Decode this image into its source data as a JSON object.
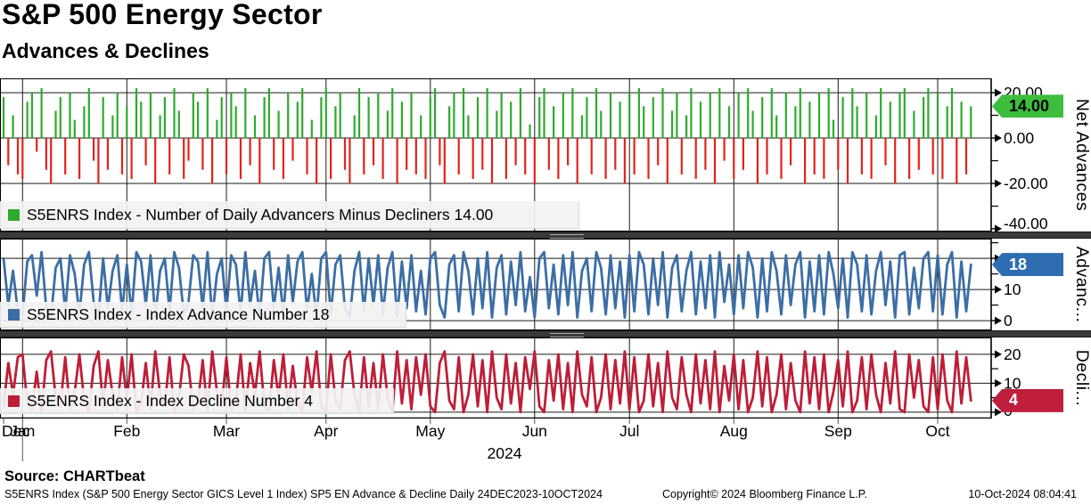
{
  "header": {
    "title": "S&P 500 Energy Sector",
    "subtitle": "Advances & Declines"
  },
  "footer": {
    "source": "Source: CHARTbeat",
    "description": "S5ENRS Index (S&P 500 Energy Sector GICS Level 1 Index) SP5 EN Advance & Decline  Daily 24DEC2023-10OCT2024",
    "copyright": "Copyright© 2024 Bloomberg Finance L.P.",
    "timestamp": "10-Oct-2024 08:04:41"
  },
  "x_axis": {
    "months": [
      "Dec",
      "Jan",
      "Feb",
      "Mar",
      "Apr",
      "May",
      "Jun",
      "Jul",
      "Aug",
      "Sep",
      "Oct"
    ],
    "month_start_index": [
      0,
      4,
      26,
      47,
      68,
      90,
      112,
      132,
      154,
      176,
      197
    ],
    "year": "2024"
  },
  "chart_data": [
    {
      "type": "bar",
      "axis_title": "Net Advances",
      "legend": "S5ENRS Index - Number of Daily Advancers Minus Decliners 14.00",
      "legend_color": "#2DAB2D",
      "pos_color": "#2DAB2D",
      "neg_color": "#E2231C",
      "badge": "14.00",
      "last_value": 14,
      "badge_color": "#3CBE3C",
      "badge_text_color": "#000000",
      "yticks": [
        20,
        0,
        -20,
        -40
      ],
      "ytick_labels": [
        "20.00",
        "0.00",
        "-20.00",
        "-40.00"
      ],
      "yticks_minor": [
        10,
        -10,
        -30
      ],
      "ylim": [
        -41.2,
        26.3
      ],
      "values": [
        18,
        -12,
        10,
        -16,
        -18,
        16,
        20,
        -6,
        22,
        -14,
        -20,
        12,
        18,
        -16,
        20,
        8,
        -18,
        14,
        22,
        -10,
        -20,
        18,
        -14,
        10,
        20,
        -16,
        14,
        -18,
        22,
        16,
        -12,
        20,
        -20,
        10,
        18,
        -16,
        22,
        12,
        -18,
        -10,
        20,
        16,
        -14,
        22,
        -20,
        8,
        18,
        -16,
        20,
        14,
        -18,
        22,
        -12,
        10,
        -20,
        18,
        22,
        -14,
        12,
        -18,
        20,
        -10,
        16,
        22,
        -16,
        8,
        -20,
        18,
        22,
        -18,
        14,
        20,
        -14,
        -20,
        10,
        22,
        -16,
        18,
        -12,
        20,
        -18,
        12,
        22,
        -20,
        16,
        -14,
        20,
        -16,
        10,
        -18,
        18,
        22,
        -12,
        -20,
        14,
        20,
        -16,
        22,
        10,
        -18,
        18,
        -14,
        22,
        -20,
        12,
        20,
        -18,
        16,
        -12,
        22,
        -16,
        6,
        -20,
        18,
        22,
        -14,
        14,
        -18,
        20,
        -12,
        22,
        -20,
        10,
        18,
        -16,
        22,
        12,
        -18,
        20,
        -14,
        16,
        -20,
        20,
        -16,
        22,
        14,
        -18,
        18,
        -12,
        22,
        -20,
        12,
        20,
        -16,
        10,
        22,
        -18,
        16,
        -14,
        20,
        -20,
        22,
        -10,
        14,
        -18,
        20,
        -14,
        22,
        12,
        -20,
        18,
        -16,
        22,
        10,
        -18,
        20,
        -12,
        14,
        22,
        -20,
        16,
        -16,
        20,
        -18,
        22,
        8,
        -14,
        18,
        -20,
        22,
        14,
        -16,
        20,
        -18,
        10,
        22,
        -12,
        16,
        -20,
        20,
        22,
        -18,
        12,
        -14,
        18,
        22,
        -16,
        20,
        -18,
        14,
        22,
        -20,
        16,
        -16,
        14
      ]
    },
    {
      "type": "line",
      "axis_title": "Advanc...",
      "legend": "S5ENRS Index - Index Advance Number 18",
      "legend_color": "#3B6EA5",
      "color": "#3B6EA5",
      "badge": "18",
      "last_value": 18,
      "badge_color": "#2E6DB1",
      "badge_text_color": "#ffffff",
      "yticks": [
        20,
        10,
        0
      ],
      "ytick_labels": [
        "20",
        "10",
        "0"
      ],
      "yticks_minor": [
        25,
        15,
        5
      ],
      "ylim": [
        -3.1,
        26.3
      ],
      "values": [
        20,
        5,
        16,
        3,
        2,
        19,
        21,
        8,
        22,
        4,
        1,
        17,
        20,
        3,
        21,
        15,
        2,
        18,
        22,
        6,
        1,
        20,
        4,
        16,
        21,
        3,
        18,
        2,
        22,
        19,
        5,
        21,
        1,
        16,
        20,
        3,
        22,
        17,
        2,
        6,
        21,
        19,
        4,
        22,
        1,
        15,
        20,
        3,
        21,
        18,
        2,
        22,
        5,
        16,
        1,
        20,
        22,
        4,
        17,
        2,
        21,
        6,
        19,
        22,
        3,
        15,
        1,
        20,
        22,
        2,
        18,
        21,
        4,
        1,
        16,
        22,
        3,
        20,
        5,
        21,
        2,
        17,
        22,
        1,
        19,
        4,
        21,
        3,
        16,
        2,
        20,
        22,
        5,
        1,
        18,
        21,
        3,
        22,
        16,
        2,
        20,
        4,
        22,
        1,
        17,
        21,
        2,
        19,
        5,
        22,
        3,
        14,
        1,
        20,
        22,
        4,
        18,
        2,
        21,
        5,
        22,
        1,
        16,
        20,
        3,
        22,
        17,
        2,
        21,
        4,
        19,
        1,
        21,
        3,
        22,
        18,
        2,
        20,
        5,
        22,
        1,
        17,
        21,
        3,
        16,
        22,
        2,
        19,
        4,
        21,
        1,
        22,
        6,
        18,
        2,
        21,
        4,
        22,
        17,
        1,
        20,
        3,
        22,
        16,
        2,
        21,
        5,
        18,
        22,
        1,
        19,
        3,
        21,
        2,
        22,
        15,
        4,
        20,
        1,
        22,
        18,
        3,
        21,
        2,
        16,
        22,
        5,
        19,
        1,
        21,
        22,
        2,
        17,
        4,
        20,
        22,
        3,
        21,
        2,
        18,
        22,
        1,
        19,
        3,
        18
      ]
    },
    {
      "type": "line",
      "axis_title": "Decli...",
      "legend": "S5ENRS Index - Index Decline Number 4",
      "legend_color": "#BE1E37",
      "color": "#BE1E37",
      "badge": "4",
      "last_value": 4,
      "badge_color": "#BF1E3C",
      "badge_text_color": "#ffffff",
      "yticks": [
        20,
        10,
        0
      ],
      "ytick_labels": [
        "20",
        "10",
        "0"
      ],
      "yticks_minor": [
        15,
        5
      ],
      "ylim": [
        -2.2,
        25.8
      ],
      "values": [
        2,
        17,
        6,
        19,
        20,
        3,
        1,
        14,
        0,
        18,
        21,
        5,
        2,
        19,
        1,
        7,
        20,
        4,
        0,
        16,
        21,
        2,
        18,
        6,
        1,
        19,
        4,
        20,
        0,
        3,
        17,
        1,
        21,
        6,
        2,
        19,
        0,
        5,
        20,
        16,
        1,
        3,
        18,
        0,
        21,
        7,
        2,
        19,
        1,
        4,
        20,
        0,
        17,
        6,
        21,
        2,
        0,
        18,
        5,
        20,
        1,
        16,
        3,
        0,
        19,
        7,
        21,
        2,
        0,
        20,
        4,
        1,
        18,
        21,
        6,
        0,
        19,
        2,
        17,
        1,
        20,
        5,
        0,
        21,
        3,
        18,
        1,
        19,
        6,
        20,
        2,
        0,
        17,
        21,
        4,
        1,
        19,
        0,
        6,
        20,
        2,
        18,
        0,
        21,
        5,
        1,
        20,
        3,
        17,
        0,
        19,
        8,
        21,
        2,
        0,
        18,
        4,
        20,
        1,
        17,
        0,
        21,
        6,
        2,
        19,
        0,
        5,
        20,
        1,
        18,
        3,
        21,
        1,
        19,
        0,
        4,
        20,
        2,
        17,
        0,
        21,
        5,
        1,
        19,
        6,
        0,
        20,
        3,
        18,
        1,
        21,
        0,
        16,
        4,
        20,
        1,
        18,
        0,
        5,
        21,
        2,
        19,
        0,
        6,
        20,
        1,
        17,
        4,
        0,
        21,
        3,
        19,
        1,
        20,
        0,
        7,
        18,
        2,
        21,
        0,
        4,
        19,
        1,
        20,
        6,
        0,
        17,
        3,
        21,
        1,
        0,
        20,
        5,
        18,
        2,
        0,
        19,
        1,
        20,
        4,
        0,
        21,
        3,
        19,
        4
      ]
    }
  ]
}
